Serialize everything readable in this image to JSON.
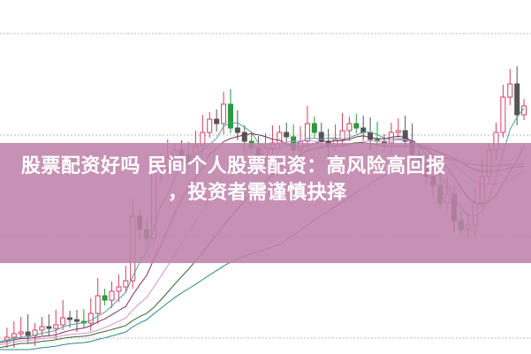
{
  "title": {
    "line1": "股票配资好吗 民间个人股票配资：高风险高回报",
    "line2": "，投资者需谨慎抉择"
  },
  "colors": {
    "banner": "#be82aa",
    "up": "#d04060",
    "down": "#2a9a3a",
    "text": "#ffffff"
  }
}
